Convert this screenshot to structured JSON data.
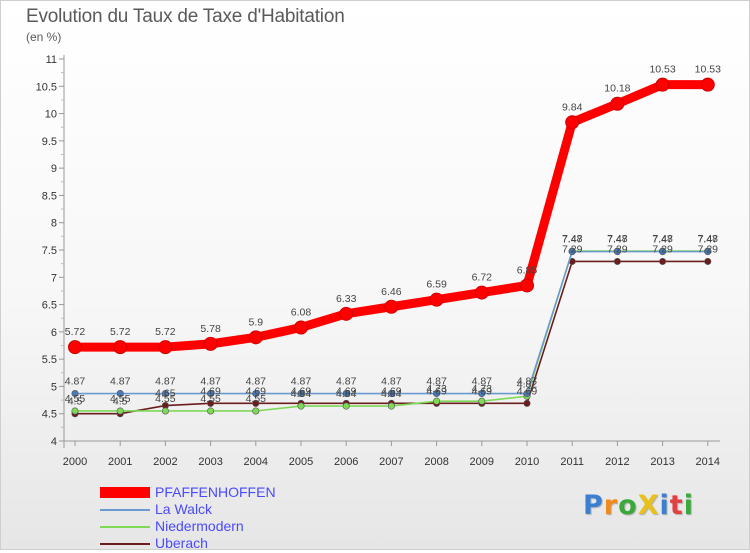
{
  "header": {
    "title": "Evolution du Taux de Taxe d'Habitation",
    "subtitle": "(en %)"
  },
  "logo": {
    "text": "ProXiti",
    "letters": [
      {
        "ch": "P",
        "color": "#3a7fd0"
      },
      {
        "ch": "r",
        "color": "#f08a1c"
      },
      {
        "ch": "o",
        "color": "#3aa83a"
      },
      {
        "ch": "X",
        "color": "#e8c21a"
      },
      {
        "ch": "i",
        "color": "#3a7fd0"
      },
      {
        "ch": "t",
        "color": "#e04040"
      },
      {
        "ch": "i",
        "color": "#3aa83a"
      }
    ]
  },
  "chart_data": {
    "type": "line",
    "title": "Evolution du Taux de Taxe d'Habitation",
    "subtitle": "(en %)",
    "ylim": [
      4,
      11
    ],
    "y_ticks": [
      4,
      4.5,
      5,
      5.5,
      6,
      6.5,
      7,
      7.5,
      8,
      8.5,
      9,
      9.5,
      10,
      10.5,
      11
    ],
    "y_tick_labels": [
      "4",
      "4.5",
      "5",
      "5.5",
      "6",
      "6.5",
      "7",
      "7.5",
      "8",
      "8.5",
      "9",
      "9.5",
      "10",
      "10.5",
      "11"
    ],
    "x": [
      "2000",
      "2001",
      "2002",
      "2003",
      "2004",
      "2005",
      "2006",
      "2007",
      "2008",
      "2009",
      "2010",
      "2011",
      "2012",
      "2013",
      "2014"
    ],
    "grid": false,
    "legend_position": "bottom-left",
    "series": [
      {
        "name": "PFAFFENHOFFEN",
        "color": "#ff0000",
        "values": [
          5.72,
          5.72,
          5.72,
          5.78,
          5.9,
          6.08,
          6.33,
          6.46,
          6.59,
          6.72,
          6.85,
          9.84,
          10.18,
          10.53,
          10.53
        ],
        "labels": [
          "5.72",
          "5.72",
          "5.72",
          "5.78",
          "5.9",
          "6.08",
          "6.33",
          "6.46",
          "6.59",
          "6.72",
          "6.85",
          "9.84",
          "10.18",
          "10.53",
          "10.53"
        ]
      },
      {
        "name": "La Walck",
        "color": "#6a9ad0",
        "values": [
          4.87,
          4.87,
          4.87,
          4.87,
          4.87,
          4.87,
          4.87,
          4.87,
          4.87,
          4.87,
          4.87,
          7.47,
          7.47,
          7.47,
          7.47
        ],
        "labels": [
          "4.87",
          "4.87",
          "4.87",
          "4.87",
          "4.87",
          "4.87",
          "4.87",
          "4.87",
          "4.87",
          "4.87",
          "4.87",
          "7.47",
          "7.47",
          "7.47",
          "7.47"
        ]
      },
      {
        "name": "Niedermodern",
        "color": "#7ed957",
        "values": [
          4.55,
          4.55,
          4.55,
          4.55,
          4.55,
          4.64,
          4.64,
          4.64,
          4.73,
          4.73,
          4.82,
          7.48,
          7.48,
          7.48,
          7.48
        ],
        "labels": [
          "4.55",
          "4.55",
          "4.55",
          "4.55",
          "4.55",
          "4.64",
          "4.64",
          "4.64",
          "4.73",
          "4.73",
          "4.82",
          "7.48",
          "7.48",
          "7.48",
          "7.48"
        ]
      },
      {
        "name": "Uberach",
        "color": "#6b1d1d",
        "values": [
          4.5,
          4.5,
          4.65,
          4.69,
          4.69,
          4.69,
          4.69,
          4.69,
          4.69,
          4.69,
          4.69,
          7.29,
          7.29,
          7.29,
          7.29
        ],
        "labels": [
          "4.5",
          "4.5",
          "4.65",
          "4.69",
          "4.69",
          "4.69",
          "4.69",
          "4.69",
          "4.69",
          "4.69",
          "4.69",
          "7.29",
          "7.29",
          "7.29",
          "7.29"
        ]
      }
    ]
  }
}
